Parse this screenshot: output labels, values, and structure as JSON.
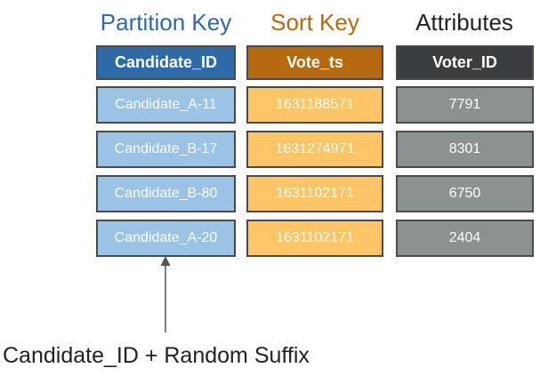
{
  "columns": [
    {
      "role": "Partition Key",
      "header": "Candidate_ID",
      "title_color": "#2e6aa8",
      "header_color": "#2e6aa8",
      "cell_color": "#9bc3e6"
    },
    {
      "role": "Sort Key",
      "header": "Vote_ts",
      "title_color": "#b56a10",
      "header_color": "#b56a10",
      "cell_color": "#ffc567"
    },
    {
      "role": "Attributes",
      "header": "Voter_ID",
      "title_color": "#222222",
      "header_color": "#3b3e40",
      "cell_color": "#8c9191"
    }
  ],
  "rows": [
    [
      "Candidate_A-11",
      "1631188571",
      "7791"
    ],
    [
      "Candidate_B-17",
      "1631274971",
      "8301"
    ],
    [
      "Candidate_B-80",
      "1631102171",
      "6750"
    ],
    [
      "Candidate_A-20",
      "1631102171",
      "2404"
    ]
  ],
  "annotation": "Candidate_ID + Random Suffix"
}
